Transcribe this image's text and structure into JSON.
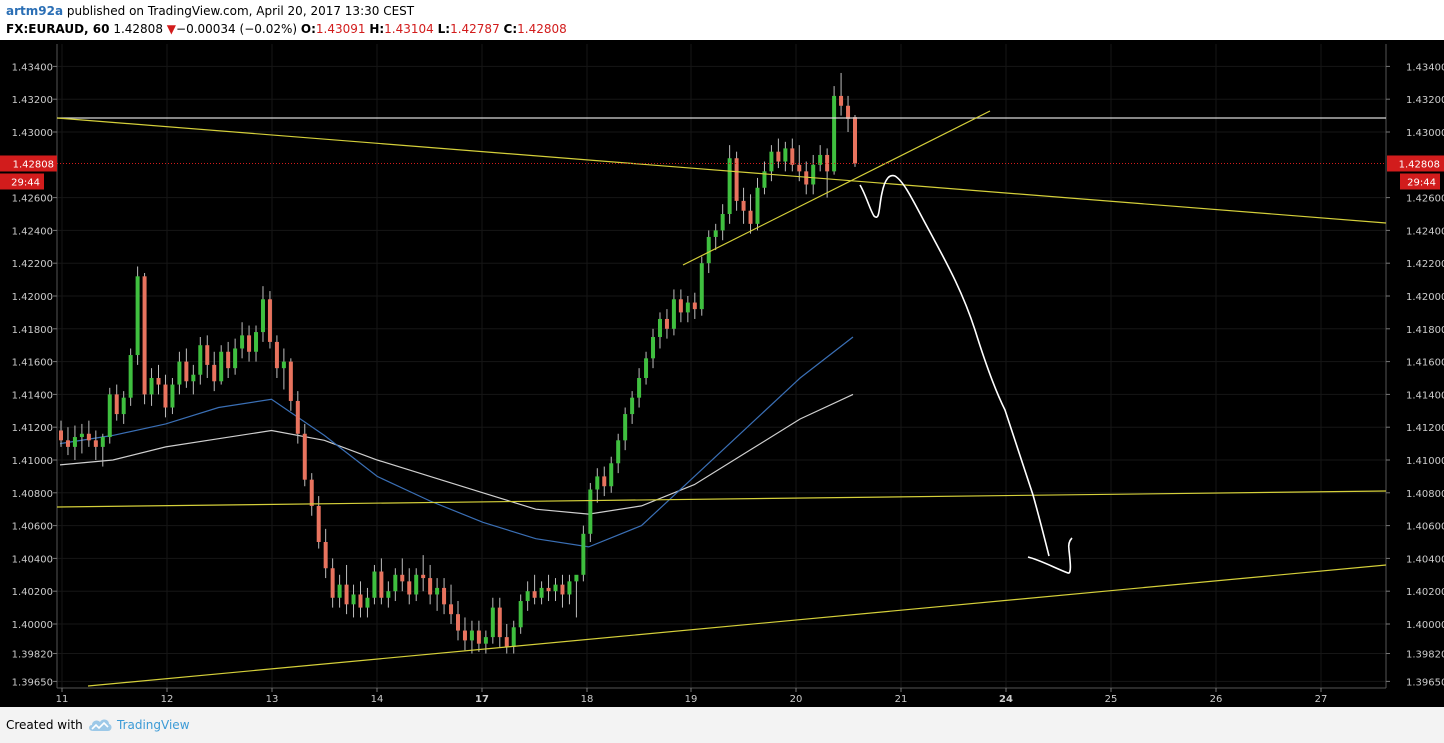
{
  "header": {
    "user": "artm92a",
    "published": "published on TradingView.com, April 20, 2017 13:30 CEST",
    "symbol": "FX:EURAUD, 60",
    "last": "1.42808",
    "down_arrow": "▼",
    "change": "−0.00034 (−0.02%)",
    "o_label": "O:",
    "o_value": "1.43091",
    "h_label": "H:",
    "h_value": "1.43104",
    "l_label": "L:",
    "l_value": "1.42787",
    "c_label": "C:",
    "c_value": "1.42808"
  },
  "footer": {
    "created_with": "Created with",
    "brand": "TradingView"
  },
  "colors": {
    "background": "#000000",
    "up": "#3fbf3f",
    "down": "#e8735e",
    "trendline": "#d4cf3a",
    "ma_fast": "#3a6fb5",
    "ma_slow": "#cfcfcf",
    "price_tag": "#d21c1c",
    "axis_text": "#cccccc"
  },
  "chart_data": {
    "type": "candlestick",
    "symbol": "FX:EURAUD",
    "interval": "60",
    "last_price": "1.42808",
    "countdown": "29:44",
    "ylim": [
      1.3963,
      1.4352
    ],
    "y_ticks": [
      "1.43400",
      "1.43200",
      "1.43000",
      "1.42600",
      "1.42400",
      "1.42200",
      "1.42000",
      "1.41800",
      "1.41600",
      "1.41400",
      "1.41200",
      "1.41000",
      "1.40800",
      "1.40600",
      "1.40400",
      "1.40200",
      "1.40000",
      "1.39820",
      "1.39650"
    ],
    "x_ticks": [
      "11",
      "12",
      "13",
      "14",
      "17",
      "18",
      "19",
      "20",
      "21",
      "24",
      "25",
      "26",
      "27"
    ],
    "bold_x_ticks": [
      "17",
      "24"
    ],
    "candles": [
      [
        1.4118,
        1.4124,
        1.4108,
        1.4112
      ],
      [
        1.4112,
        1.412,
        1.4103,
        1.4108
      ],
      [
        1.4108,
        1.4121,
        1.41,
        1.4114
      ],
      [
        1.4114,
        1.4122,
        1.4104,
        1.4116
      ],
      [
        1.4116,
        1.4124,
        1.4108,
        1.4112
      ],
      [
        1.4112,
        1.4118,
        1.41,
        1.4108
      ],
      [
        1.4108,
        1.4116,
        1.4096,
        1.4114
      ],
      [
        1.4114,
        1.4144,
        1.411,
        1.414
      ],
      [
        1.414,
        1.4146,
        1.4124,
        1.4128
      ],
      [
        1.4128,
        1.4142,
        1.4122,
        1.4138
      ],
      [
        1.4138,
        1.4168,
        1.4133,
        1.4164
      ],
      [
        1.4164,
        1.4218,
        1.4158,
        1.4212
      ],
      [
        1.4212,
        1.4214,
        1.4134,
        1.414
      ],
      [
        1.414,
        1.4156,
        1.4133,
        1.415
      ],
      [
        1.415,
        1.4158,
        1.414,
        1.4146
      ],
      [
        1.4146,
        1.4152,
        1.4126,
        1.4132
      ],
      [
        1.4132,
        1.415,
        1.4128,
        1.4146
      ],
      [
        1.4146,
        1.4166,
        1.414,
        1.416
      ],
      [
        1.416,
        1.4168,
        1.4144,
        1.4148
      ],
      [
        1.4148,
        1.4158,
        1.414,
        1.4152
      ],
      [
        1.4152,
        1.4175,
        1.4146,
        1.417
      ],
      [
        1.417,
        1.4176,
        1.415,
        1.4158
      ],
      [
        1.4158,
        1.4166,
        1.4142,
        1.4148
      ],
      [
        1.4148,
        1.417,
        1.4146,
        1.4166
      ],
      [
        1.4166,
        1.4172,
        1.415,
        1.4156
      ],
      [
        1.4156,
        1.4174,
        1.4152,
        1.4168
      ],
      [
        1.4168,
        1.4184,
        1.4162,
        1.4176
      ],
      [
        1.4176,
        1.4182,
        1.416,
        1.4166
      ],
      [
        1.4166,
        1.4182,
        1.416,
        1.4178
      ],
      [
        1.4178,
        1.4206,
        1.4172,
        1.4198
      ],
      [
        1.4198,
        1.4203,
        1.4168,
        1.4172
      ],
      [
        1.4172,
        1.4176,
        1.415,
        1.4156
      ],
      [
        1.4156,
        1.4168,
        1.4143,
        1.416
      ],
      [
        1.416,
        1.4162,
        1.413,
        1.4136
      ],
      [
        1.4136,
        1.4142,
        1.411,
        1.4116
      ],
      [
        1.4116,
        1.4122,
        1.4084,
        1.4088
      ],
      [
        1.4088,
        1.4092,
        1.4066,
        1.4072
      ],
      [
        1.4072,
        1.4078,
        1.4046,
        1.405
      ],
      [
        1.405,
        1.4058,
        1.4028,
        1.4034
      ],
      [
        1.4034,
        1.404,
        1.401,
        1.4016
      ],
      [
        1.4016,
        1.403,
        1.401,
        1.4024
      ],
      [
        1.4024,
        1.4036,
        1.4006,
        1.4012
      ],
      [
        1.4012,
        1.4024,
        1.4004,
        1.4018
      ],
      [
        1.4018,
        1.4026,
        1.4004,
        1.401
      ],
      [
        1.401,
        1.4022,
        1.4004,
        1.4016
      ],
      [
        1.4016,
        1.4036,
        1.4012,
        1.4032
      ],
      [
        1.4032,
        1.404,
        1.4012,
        1.4016
      ],
      [
        1.4016,
        1.4026,
        1.401,
        1.402
      ],
      [
        1.402,
        1.4034,
        1.4014,
        1.403
      ],
      [
        1.403,
        1.404,
        1.402,
        1.4026
      ],
      [
        1.4026,
        1.4034,
        1.4012,
        1.4018
      ],
      [
        1.4018,
        1.4034,
        1.4014,
        1.403
      ],
      [
        1.403,
        1.4042,
        1.402,
        1.4028
      ],
      [
        1.4028,
        1.4036,
        1.4012,
        1.4018
      ],
      [
        1.4018,
        1.4028,
        1.4008,
        1.4022
      ],
      [
        1.4022,
        1.4028,
        1.4006,
        1.4012
      ],
      [
        1.4012,
        1.4024,
        1.4,
        1.4006
      ],
      [
        1.4006,
        1.4014,
        1.399,
        1.3996
      ],
      [
        1.3996,
        1.4004,
        1.3984,
        1.399
      ],
      [
        1.399,
        1.4002,
        1.3982,
        1.3996
      ],
      [
        1.3996,
        1.4002,
        1.3983,
        1.3988
      ],
      [
        1.3988,
        1.3996,
        1.3982,
        1.3992
      ],
      [
        1.3992,
        1.4016,
        1.3988,
        1.401
      ],
      [
        1.401,
        1.4016,
        1.3986,
        1.3992
      ],
      [
        1.3992,
        1.4,
        1.3982,
        1.3986
      ],
      [
        1.3986,
        1.4002,
        1.3982,
        1.3998
      ],
      [
        1.3998,
        1.4018,
        1.3994,
        1.4014
      ],
      [
        1.4014,
        1.4026,
        1.4008,
        1.402
      ],
      [
        1.402,
        1.403,
        1.4012,
        1.4016
      ],
      [
        1.4016,
        1.4026,
        1.4012,
        1.4022
      ],
      [
        1.4022,
        1.403,
        1.4014,
        1.402
      ],
      [
        1.402,
        1.4028,
        1.4014,
        1.4024
      ],
      [
        1.4024,
        1.403,
        1.401,
        1.4018
      ],
      [
        1.4018,
        1.403,
        1.4012,
        1.4026
      ],
      [
        1.4026,
        1.4028,
        1.4004,
        1.403
      ],
      [
        1.403,
        1.406,
        1.4026,
        1.4055
      ],
      [
        1.4055,
        1.4086,
        1.405,
        1.4082
      ],
      [
        1.4082,
        1.4095,
        1.4074,
        1.409
      ],
      [
        1.409,
        1.4096,
        1.4078,
        1.4084
      ],
      [
        1.4084,
        1.4102,
        1.408,
        1.4098
      ],
      [
        1.4098,
        1.4116,
        1.4092,
        1.4112
      ],
      [
        1.4112,
        1.4132,
        1.4106,
        1.4128
      ],
      [
        1.4128,
        1.4142,
        1.4122,
        1.4138
      ],
      [
        1.4138,
        1.4156,
        1.4132,
        1.415
      ],
      [
        1.415,
        1.4166,
        1.4146,
        1.4162
      ],
      [
        1.4162,
        1.418,
        1.4156,
        1.4175
      ],
      [
        1.4175,
        1.419,
        1.4168,
        1.4186
      ],
      [
        1.4186,
        1.4192,
        1.4174,
        1.418
      ],
      [
        1.418,
        1.4204,
        1.4176,
        1.4198
      ],
      [
        1.4198,
        1.4204,
        1.4184,
        1.419
      ],
      [
        1.419,
        1.42,
        1.4184,
        1.4196
      ],
      [
        1.4196,
        1.4202,
        1.4186,
        1.4192
      ],
      [
        1.4192,
        1.4224,
        1.4188,
        1.422
      ],
      [
        1.422,
        1.424,
        1.4214,
        1.4236
      ],
      [
        1.4236,
        1.4244,
        1.4228,
        1.424
      ],
      [
        1.424,
        1.4256,
        1.4234,
        1.425
      ],
      [
        1.425,
        1.4292,
        1.4244,
        1.4284
      ],
      [
        1.4284,
        1.4288,
        1.4252,
        1.4258
      ],
      [
        1.4258,
        1.4266,
        1.4244,
        1.4252
      ],
      [
        1.4252,
        1.4262,
        1.4238,
        1.4244
      ],
      [
        1.4244,
        1.4272,
        1.424,
        1.4266
      ],
      [
        1.4266,
        1.4282,
        1.4262,
        1.4276
      ],
      [
        1.4276,
        1.4292,
        1.427,
        1.4288
      ],
      [
        1.4288,
        1.4296,
        1.4278,
        1.4282
      ],
      [
        1.4282,
        1.4294,
        1.4276,
        1.429
      ],
      [
        1.429,
        1.4296,
        1.4276,
        1.428
      ],
      [
        1.428,
        1.4292,
        1.427,
        1.4276
      ],
      [
        1.4276,
        1.4282,
        1.4262,
        1.4268
      ],
      [
        1.4268,
        1.4286,
        1.4262,
        1.428
      ],
      [
        1.428,
        1.4292,
        1.4276,
        1.4286
      ],
      [
        1.4286,
        1.429,
        1.426,
        1.4276
      ],
      [
        1.4276,
        1.4328,
        1.4274,
        1.4322
      ],
      [
        1.4322,
        1.4336,
        1.431,
        1.4316
      ],
      [
        1.4316,
        1.4322,
        1.43,
        1.4308
      ],
      [
        1.43091,
        1.43104,
        1.42787,
        1.42808
      ]
    ],
    "ma_fast": [
      1.411,
      1.4115,
      1.4122,
      1.4132,
      1.4137,
      1.4115,
      1.409,
      1.4075,
      1.4062,
      1.4052,
      1.4047,
      1.406,
      1.409,
      1.412,
      1.415,
      1.4175
    ],
    "ma_slow": [
      1.4097,
      1.41,
      1.4108,
      1.4113,
      1.4118,
      1.4112,
      1.41,
      1.409,
      1.408,
      1.407,
      1.4067,
      1.4072,
      1.4085,
      1.4105,
      1.4125,
      1.414
    ]
  }
}
